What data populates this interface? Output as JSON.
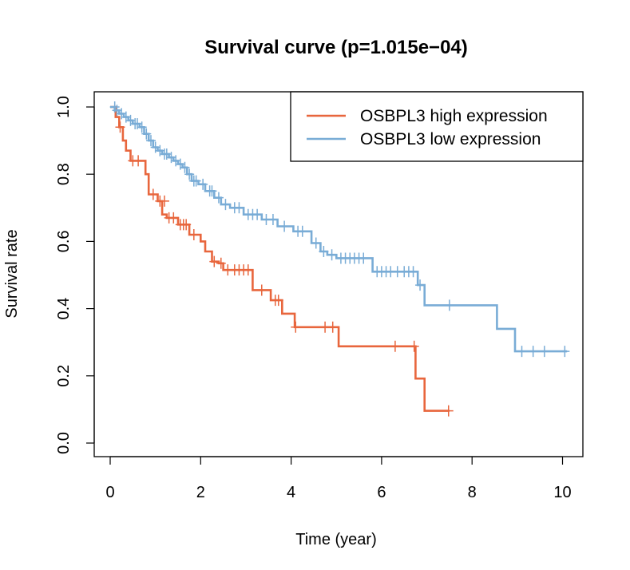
{
  "chart_data": {
    "type": "line",
    "subtype": "kaplan-meier step",
    "title": "Survival curve (p=1.015e−04)",
    "xlabel": "Time (year)",
    "ylabel": "Survival rate",
    "xlim": [
      0,
      10.2
    ],
    "ylim": [
      0,
      1.03
    ],
    "x_ticks": [
      "0",
      "2",
      "4",
      "6",
      "8",
      "10"
    ],
    "y_ticks": [
      "0.0",
      "0.2",
      "0.4",
      "0.6",
      "0.8",
      "1.0"
    ],
    "grid": false,
    "legend_position": "top-right",
    "series": [
      {
        "name": "OSBPL3 high expression",
        "color": "#e8663d",
        "steps": [
          [
            0,
            1.0
          ],
          [
            0.12,
            0.97
          ],
          [
            0.2,
            0.94
          ],
          [
            0.28,
            0.9
          ],
          [
            0.35,
            0.87
          ],
          [
            0.45,
            0.84
          ],
          [
            0.78,
            0.8
          ],
          [
            0.85,
            0.74
          ],
          [
            1.05,
            0.72
          ],
          [
            1.15,
            0.68
          ],
          [
            1.25,
            0.67
          ],
          [
            1.5,
            0.65
          ],
          [
            1.75,
            0.62
          ],
          [
            2.0,
            0.6
          ],
          [
            2.1,
            0.57
          ],
          [
            2.25,
            0.54
          ],
          [
            2.4,
            0.535
          ],
          [
            2.5,
            0.515
          ],
          [
            3.15,
            0.455
          ],
          [
            3.55,
            0.425
          ],
          [
            3.8,
            0.385
          ],
          [
            4.08,
            0.345
          ],
          [
            5.05,
            0.288
          ],
          [
            6.75,
            0.192
          ],
          [
            6.95,
            0.096
          ],
          [
            7.5,
            0.096
          ]
        ],
        "censored": [
          [
            0.22,
            0.94
          ],
          [
            0.5,
            0.84
          ],
          [
            0.62,
            0.84
          ],
          [
            0.95,
            0.74
          ],
          [
            1.1,
            0.72
          ],
          [
            1.2,
            0.72
          ],
          [
            1.3,
            0.67
          ],
          [
            1.4,
            0.67
          ],
          [
            1.55,
            0.65
          ],
          [
            1.62,
            0.65
          ],
          [
            1.68,
            0.65
          ],
          [
            1.85,
            0.62
          ],
          [
            2.3,
            0.54
          ],
          [
            2.45,
            0.535
          ],
          [
            2.6,
            0.515
          ],
          [
            2.75,
            0.515
          ],
          [
            2.85,
            0.515
          ],
          [
            2.95,
            0.515
          ],
          [
            3.05,
            0.515
          ],
          [
            3.35,
            0.455
          ],
          [
            3.65,
            0.425
          ],
          [
            3.72,
            0.425
          ],
          [
            4.1,
            0.345
          ],
          [
            4.75,
            0.345
          ],
          [
            4.92,
            0.345
          ],
          [
            6.3,
            0.288
          ],
          [
            6.72,
            0.288
          ],
          [
            7.48,
            0.096
          ]
        ]
      },
      {
        "name": "OSBPL3 low expression",
        "color": "#79acd6",
        "steps": [
          [
            0,
            1.0
          ],
          [
            0.1,
            0.99
          ],
          [
            0.2,
            0.98
          ],
          [
            0.3,
            0.97
          ],
          [
            0.4,
            0.96
          ],
          [
            0.5,
            0.95
          ],
          [
            0.65,
            0.94
          ],
          [
            0.75,
            0.92
          ],
          [
            0.85,
            0.9
          ],
          [
            0.95,
            0.88
          ],
          [
            1.05,
            0.87
          ],
          [
            1.15,
            0.86
          ],
          [
            1.3,
            0.85
          ],
          [
            1.4,
            0.84
          ],
          [
            1.5,
            0.83
          ],
          [
            1.6,
            0.82
          ],
          [
            1.7,
            0.8
          ],
          [
            1.8,
            0.78
          ],
          [
            1.95,
            0.77
          ],
          [
            2.1,
            0.75
          ],
          [
            2.3,
            0.73
          ],
          [
            2.45,
            0.71
          ],
          [
            2.65,
            0.7
          ],
          [
            2.95,
            0.68
          ],
          [
            3.35,
            0.665
          ],
          [
            3.7,
            0.645
          ],
          [
            4.05,
            0.63
          ],
          [
            4.45,
            0.595
          ],
          [
            4.65,
            0.57
          ],
          [
            4.8,
            0.56
          ],
          [
            5.0,
            0.55
          ],
          [
            5.8,
            0.51
          ],
          [
            6.8,
            0.47
          ],
          [
            6.95,
            0.41
          ],
          [
            8.55,
            0.34
          ],
          [
            8.95,
            0.273
          ],
          [
            10.1,
            0.273
          ]
        ],
        "censored": [
          [
            0.1,
            1.0
          ],
          [
            0.15,
            0.99
          ],
          [
            0.25,
            0.98
          ],
          [
            0.35,
            0.97
          ],
          [
            0.45,
            0.96
          ],
          [
            0.55,
            0.95
          ],
          [
            0.6,
            0.95
          ],
          [
            0.7,
            0.94
          ],
          [
            0.8,
            0.92
          ],
          [
            0.9,
            0.9
          ],
          [
            1.0,
            0.88
          ],
          [
            1.1,
            0.87
          ],
          [
            1.2,
            0.86
          ],
          [
            1.25,
            0.86
          ],
          [
            1.35,
            0.85
          ],
          [
            1.45,
            0.84
          ],
          [
            1.55,
            0.83
          ],
          [
            1.65,
            0.82
          ],
          [
            1.75,
            0.8
          ],
          [
            1.85,
            0.78
          ],
          [
            1.9,
            0.78
          ],
          [
            2.05,
            0.77
          ],
          [
            2.2,
            0.75
          ],
          [
            2.25,
            0.75
          ],
          [
            2.4,
            0.73
          ],
          [
            2.55,
            0.71
          ],
          [
            2.75,
            0.7
          ],
          [
            2.85,
            0.7
          ],
          [
            3.05,
            0.68
          ],
          [
            3.15,
            0.68
          ],
          [
            3.25,
            0.68
          ],
          [
            3.45,
            0.665
          ],
          [
            3.6,
            0.665
          ],
          [
            3.85,
            0.645
          ],
          [
            4.15,
            0.63
          ],
          [
            4.25,
            0.63
          ],
          [
            4.55,
            0.595
          ],
          [
            4.72,
            0.57
          ],
          [
            4.9,
            0.56
          ],
          [
            5.1,
            0.55
          ],
          [
            5.2,
            0.55
          ],
          [
            5.3,
            0.55
          ],
          [
            5.4,
            0.55
          ],
          [
            5.5,
            0.55
          ],
          [
            5.6,
            0.55
          ],
          [
            5.9,
            0.51
          ],
          [
            6.0,
            0.51
          ],
          [
            6.1,
            0.51
          ],
          [
            6.2,
            0.51
          ],
          [
            6.35,
            0.51
          ],
          [
            6.5,
            0.51
          ],
          [
            6.6,
            0.51
          ],
          [
            6.7,
            0.51
          ],
          [
            6.85,
            0.47
          ],
          [
            7.5,
            0.41
          ],
          [
            9.1,
            0.273
          ],
          [
            9.35,
            0.273
          ],
          [
            9.6,
            0.273
          ],
          [
            10.05,
            0.273
          ]
        ]
      }
    ]
  }
}
